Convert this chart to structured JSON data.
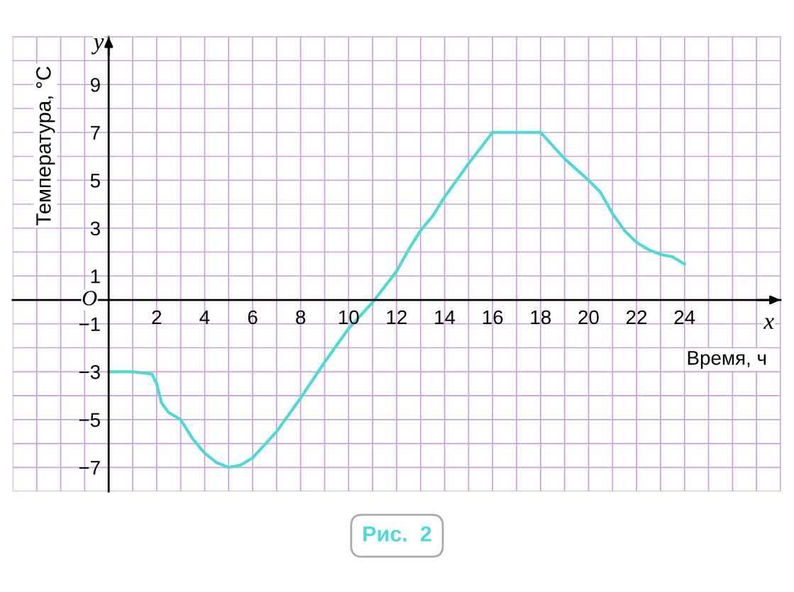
{
  "chart_data": {
    "type": "line",
    "xlabel": "Время, ч",
    "ylabel": "Температура, °C",
    "x": [
      0,
      1,
      1.8,
      2,
      2.2,
      2.5,
      3,
      3.5,
      4,
      4.5,
      5,
      5.5,
      6,
      7,
      8,
      9,
      10,
      11,
      12,
      12.5,
      13,
      13.5,
      14,
      15,
      16,
      17,
      18,
      19,
      20,
      20.5,
      21,
      21.5,
      22,
      22.5,
      23,
      23.5,
      24
    ],
    "series": [
      {
        "color": "#4dd9d6",
        "values": [
          -3,
          -3,
          -3.1,
          -3.5,
          -4.3,
          -4.7,
          -5,
          -5.8,
          -6.4,
          -6.8,
          -7,
          -6.9,
          -6.6,
          -5.5,
          -4.1,
          -2.6,
          -1.2,
          -0.1,
          1.2,
          2.1,
          2.9,
          3.5,
          4.3,
          5.7,
          7,
          7,
          7,
          5.9,
          5,
          4.5,
          3.6,
          2.9,
          2.4,
          2.1,
          1.9,
          1.8,
          1.5
        ]
      }
    ],
    "xlim": [
      -4,
      28
    ],
    "ylim": [
      -8,
      11
    ],
    "xticks": [
      2,
      4,
      6,
      8,
      10,
      12,
      14,
      16,
      18,
      20,
      22,
      24
    ],
    "yticks": [
      {
        "value": -7,
        "label": "−7"
      },
      {
        "value": -5,
        "label": "−5"
      },
      {
        "value": -3,
        "label": "−3"
      },
      {
        "value": -1,
        "label": "−1"
      },
      1,
      3,
      5,
      7,
      9
    ],
    "grid": true,
    "marker": "none",
    "line_style": "solid",
    "annotations": [
      "x",
      "y",
      "O",
      "Рис.  2"
    ]
  }
}
